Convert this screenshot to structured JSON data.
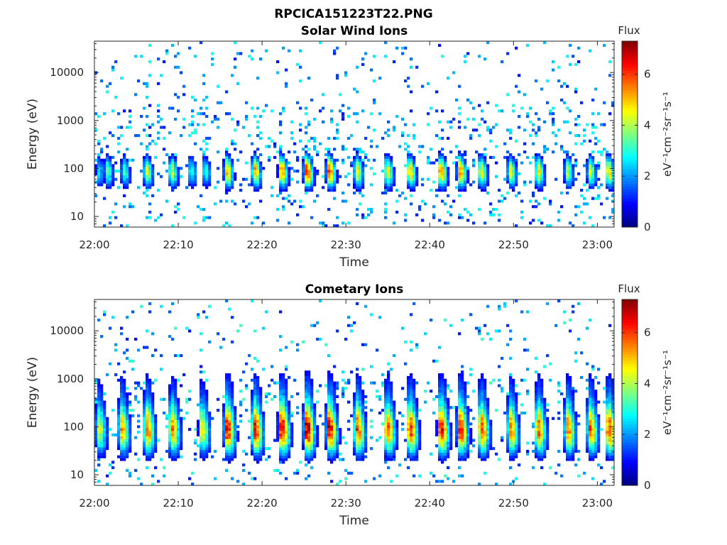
{
  "figure": {
    "title": "RPCICA151223T22.PNG"
  },
  "chart_data": [
    {
      "type": "heatmap",
      "title": "Solar Wind Ions",
      "xlabel": "Time",
      "ylabel": "Energy (eV)",
      "y_scale": "log",
      "ylim": [
        6,
        45000
      ],
      "xlim_minutes": [
        0,
        62
      ],
      "x_tick_labels": [
        "22:00",
        "22:10",
        "22:20",
        "22:30",
        "22:40",
        "22:50",
        "23:00"
      ],
      "y_tick_labels": [
        "10",
        "100",
        "1000",
        "10000"
      ],
      "colorbar": {
        "label": "Flux",
        "unit": "eV⁻¹cm⁻²sr⁻¹s⁻¹",
        "range": [
          0,
          7.3
        ],
        "ticks": [
          "0",
          "2",
          "4",
          "6"
        ],
        "colormap": "jet"
      },
      "bursts_minute": [
        0.5,
        1.5,
        3.5,
        6.2,
        9.2,
        11.5,
        13.2,
        15.8,
        19.1,
        22.3,
        25.3,
        28.0,
        31.3,
        34.9,
        37.6,
        41.3,
        43.6,
        46.1,
        49.6,
        52.9,
        56.4,
        59.1,
        61.3
      ],
      "bursts_peak_flux": [
        2.6,
        3.6,
        3.4,
        4.4,
        4.3,
        3.2,
        3.0,
        5.3,
        5.4,
        5.7,
        6.5,
        6.1,
        5.0,
        4.8,
        5.1,
        5.7,
        5.8,
        4.9,
        4.5,
        4.8,
        4.0,
        4.2,
        5.0
      ],
      "background_flux_range": [
        1.0,
        3.0
      ]
    },
    {
      "type": "heatmap",
      "title": "Cometary Ions",
      "xlabel": "Time",
      "ylabel": "Energy (eV)",
      "y_scale": "log",
      "ylim": [
        6,
        45000
      ],
      "xlim_minutes": [
        0,
        62
      ],
      "x_tick_labels": [
        "22:00",
        "22:10",
        "22:20",
        "22:30",
        "22:40",
        "22:50",
        "23:00"
      ],
      "y_tick_labels": [
        "10",
        "100",
        "1000",
        "10000"
      ],
      "colorbar": {
        "label": "Flux",
        "unit": "eV⁻¹cm⁻²sr⁻¹s⁻¹",
        "range": [
          0,
          7.3
        ],
        "ticks": [
          "0",
          "2",
          "4",
          "6"
        ],
        "colormap": "jet"
      },
      "bursts_minute": [
        0.5,
        3.2,
        6.2,
        9.2,
        12.8,
        15.8,
        19.1,
        22.3,
        25.3,
        28.0,
        31.3,
        34.9,
        37.6,
        41.3,
        43.6,
        46.1,
        49.6,
        52.9,
        56.4,
        59.1,
        61.3
      ],
      "bursts_peak_flux": [
        4.3,
        5.2,
        5.8,
        5.5,
        4.6,
        6.3,
        6.4,
        6.6,
        6.9,
        6.5,
        6.0,
        5.8,
        6.1,
        6.4,
        6.2,
        5.9,
        5.4,
        5.7,
        5.6,
        5.5,
        6.1
      ],
      "background_flux_range": [
        1.0,
        3.2
      ]
    }
  ]
}
